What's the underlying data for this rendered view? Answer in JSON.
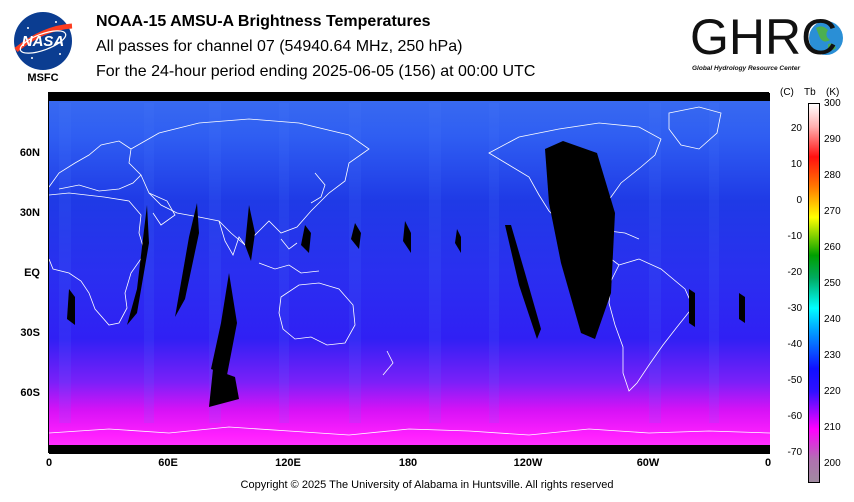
{
  "header": {
    "title": "NOAA-15 AMSU-A Brightness Temperatures",
    "subtitle": "All passes for channel 07 (54940.64 MHz, 250 hPa)",
    "period": "For the 24-hour period ending 2025-06-05 (156) at 00:00 UTC"
  },
  "logos": {
    "nasa_text": "NASA",
    "nasa_sub": "MSFC",
    "ghrc_text": "GHRC",
    "ghrc_sub": "Global Hydrology Resource Center"
  },
  "map": {
    "lat_labels": [
      "60N",
      "30N",
      "EQ",
      "30S",
      "60S"
    ],
    "lon_labels": [
      "0",
      "60E",
      "120E",
      "180",
      "120W",
      "60W",
      "0"
    ]
  },
  "colorbar": {
    "unit_c": "(C)",
    "unit_tb": "Tb",
    "unit_k": "(K)",
    "celsius_ticks": [
      "20",
      "10",
      "0",
      "-10",
      "-20",
      "-30",
      "-40",
      "-50",
      "-60",
      "-70"
    ],
    "kelvin_ticks": [
      "300",
      "290",
      "280",
      "270",
      "260",
      "250",
      "240",
      "230",
      "220",
      "210",
      "200"
    ],
    "range_k": [
      195,
      300
    ],
    "colors": [
      "#ffffff",
      "#ff1010",
      "#ffff00",
      "#00aa00",
      "#00ffff",
      "#1010ff",
      "#ff00ff",
      "#a08aa0"
    ]
  },
  "footer": {
    "copyright": "Copyright © 2025 The University of Alabama in Huntsville.  All rights reserved"
  }
}
